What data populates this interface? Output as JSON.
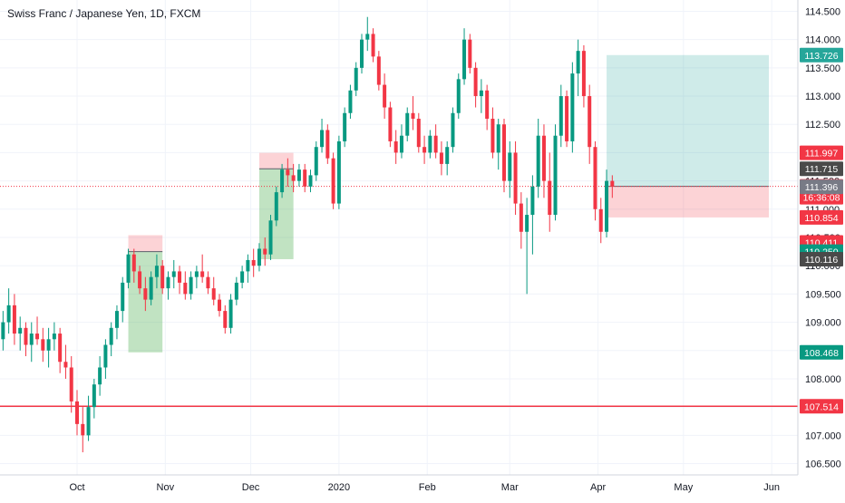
{
  "chart_data": {
    "type": "candlestick",
    "title": "Swiss Franc / Japanese Yen, 1D, FXCM",
    "grid": true,
    "x_axis": {
      "labels": [
        {
          "label": "Oct",
          "date": "2019-10-01"
        },
        {
          "label": "Nov",
          "date": "2019-11-01"
        },
        {
          "label": "Dec",
          "date": "2019-12-01"
        },
        {
          "label": "2020",
          "date": "2020-01-01"
        },
        {
          "label": "Feb",
          "date": "2020-02-01"
        },
        {
          "label": "Mar",
          "date": "2020-03-01"
        },
        {
          "label": "Apr",
          "date": "2020-04-01"
        },
        {
          "label": "May",
          "date": "2020-05-01"
        },
        {
          "label": "Jun",
          "date": "2020-06-01"
        }
      ]
    },
    "y_axis": {
      "ylim": [
        106.3,
        114.7
      ],
      "ticks": [
        "106.500",
        "107.000",
        "107.500",
        "108.000",
        "108.500",
        "109.000",
        "109.500",
        "110.000",
        "110.500",
        "111.000",
        "111.500",
        "112.000",
        "112.500",
        "113.000",
        "113.500",
        "114.000",
        "114.500"
      ]
    },
    "price_labels": [
      {
        "value": 113.726,
        "text": "113.726",
        "color": "#26a69a"
      },
      {
        "value": 111.997,
        "text": "111.997",
        "color": "#f23645"
      },
      {
        "value": 111.715,
        "text": "111.715",
        "color": "#4a4a4a"
      },
      {
        "value": 111.403,
        "text": "111.403",
        "color": "#f23645"
      },
      {
        "value": 111.212,
        "text": "16:36:08",
        "color": "#f23645"
      },
      {
        "value": 111.396,
        "text": "111.396",
        "color": "#787b86"
      },
      {
        "value": 110.854,
        "text": "110.854",
        "color": "#f23645"
      },
      {
        "value": 110.411,
        "text": "110.411",
        "color": "#f23645"
      },
      {
        "value": 110.25,
        "text": "110.250",
        "color": "#089981"
      },
      {
        "value": 110.116,
        "text": "110.116",
        "color": "#4a4a4a"
      },
      {
        "value": 108.468,
        "text": "108.468",
        "color": "#089981"
      },
      {
        "value": 107.514,
        "text": "107.514",
        "color": "#f23645"
      }
    ],
    "horizontal_lines": [
      {
        "value": 107.514,
        "color": "#f23645",
        "style": "solid"
      },
      {
        "value": 111.403,
        "color": "#f23645",
        "style": "dotted"
      }
    ],
    "position_boxes": [
      {
        "kind": "long",
        "x_start": "2019-10-19",
        "x_end": "2019-10-31",
        "entry": 110.25,
        "stop": 110.54,
        "target": 108.468
      },
      {
        "kind": "long",
        "x_start": "2019-12-04",
        "x_end": "2019-12-16",
        "entry": 111.715,
        "stop": 111.997,
        "target": 110.116
      },
      {
        "kind": "long",
        "x_start": "2020-04-04",
        "x_end": "2020-05-31",
        "entry": 111.403,
        "stop": 110.854,
        "target": 113.726
      }
    ],
    "candles": [
      {
        "date": "2019-09-01",
        "o": 108.2,
        "h": 108.6,
        "l": 107.9,
        "c": 108.4
      },
      {
        "date": "2019-09-03",
        "o": 108.4,
        "h": 108.9,
        "l": 108.2,
        "c": 108.7
      },
      {
        "date": "2019-09-05",
        "o": 108.7,
        "h": 109.2,
        "l": 108.5,
        "c": 109.0
      },
      {
        "date": "2019-09-07",
        "o": 109.0,
        "h": 109.6,
        "l": 108.8,
        "c": 109.3
      },
      {
        "date": "2019-09-09",
        "o": 109.3,
        "h": 109.5,
        "l": 108.6,
        "c": 108.8
      },
      {
        "date": "2019-09-11",
        "o": 108.8,
        "h": 109.1,
        "l": 108.5,
        "c": 108.9
      },
      {
        "date": "2019-09-13",
        "o": 108.9,
        "h": 109.0,
        "l": 108.4,
        "c": 108.6
      },
      {
        "date": "2019-09-15",
        "o": 108.6,
        "h": 109.0,
        "l": 108.3,
        "c": 108.8
      },
      {
        "date": "2019-09-17",
        "o": 108.8,
        "h": 109.1,
        "l": 108.6,
        "c": 108.7
      },
      {
        "date": "2019-09-19",
        "o": 108.7,
        "h": 108.9,
        "l": 108.3,
        "c": 108.5
      },
      {
        "date": "2019-09-21",
        "o": 108.5,
        "h": 108.9,
        "l": 108.2,
        "c": 108.7
      },
      {
        "date": "2019-09-23",
        "o": 108.7,
        "h": 109.0,
        "l": 108.5,
        "c": 108.8
      },
      {
        "date": "2019-09-25",
        "o": 108.8,
        "h": 108.9,
        "l": 108.1,
        "c": 108.3
      },
      {
        "date": "2019-09-27",
        "o": 108.3,
        "h": 108.6,
        "l": 108.0,
        "c": 108.2
      },
      {
        "date": "2019-09-29",
        "o": 108.2,
        "h": 108.4,
        "l": 107.4,
        "c": 107.6
      },
      {
        "date": "2019-10-01",
        "o": 107.6,
        "h": 107.8,
        "l": 107.0,
        "c": 107.2
      },
      {
        "date": "2019-10-03",
        "o": 107.2,
        "h": 107.5,
        "l": 106.7,
        "c": 107.0
      },
      {
        "date": "2019-10-05",
        "o": 107.0,
        "h": 107.7,
        "l": 106.9,
        "c": 107.5
      },
      {
        "date": "2019-10-07",
        "o": 107.5,
        "h": 108.0,
        "l": 107.3,
        "c": 107.9
      },
      {
        "date": "2019-10-09",
        "o": 107.9,
        "h": 108.4,
        "l": 107.7,
        "c": 108.2
      },
      {
        "date": "2019-10-11",
        "o": 108.2,
        "h": 108.7,
        "l": 108.0,
        "c": 108.6
      },
      {
        "date": "2019-10-13",
        "o": 108.6,
        "h": 109.0,
        "l": 108.4,
        "c": 108.9
      },
      {
        "date": "2019-10-15",
        "o": 108.9,
        "h": 109.3,
        "l": 108.7,
        "c": 109.2
      },
      {
        "date": "2019-10-17",
        "o": 109.2,
        "h": 109.8,
        "l": 109.0,
        "c": 109.7
      },
      {
        "date": "2019-10-19",
        "o": 109.7,
        "h": 110.3,
        "l": 109.6,
        "c": 110.2
      },
      {
        "date": "2019-10-21",
        "o": 110.2,
        "h": 110.3,
        "l": 109.7,
        "c": 109.9
      },
      {
        "date": "2019-10-23",
        "o": 109.9,
        "h": 110.0,
        "l": 109.5,
        "c": 109.6
      },
      {
        "date": "2019-10-25",
        "o": 109.6,
        "h": 109.8,
        "l": 109.2,
        "c": 109.4
      },
      {
        "date": "2019-10-27",
        "o": 109.4,
        "h": 109.9,
        "l": 109.3,
        "c": 109.8
      },
      {
        "date": "2019-10-29",
        "o": 109.8,
        "h": 110.2,
        "l": 109.6,
        "c": 110.0
      },
      {
        "date": "2019-10-31",
        "o": 110.0,
        "h": 110.1,
        "l": 109.5,
        "c": 109.6
      },
      {
        "date": "2019-11-02",
        "o": 109.6,
        "h": 109.9,
        "l": 109.4,
        "c": 109.8
      },
      {
        "date": "2019-11-04",
        "o": 109.8,
        "h": 110.1,
        "l": 109.6,
        "c": 109.9
      },
      {
        "date": "2019-11-06",
        "o": 109.9,
        "h": 110.0,
        "l": 109.5,
        "c": 109.7
      },
      {
        "date": "2019-11-08",
        "o": 109.7,
        "h": 109.9,
        "l": 109.4,
        "c": 109.5
      },
      {
        "date": "2019-11-10",
        "o": 109.5,
        "h": 109.9,
        "l": 109.4,
        "c": 109.8
      },
      {
        "date": "2019-11-12",
        "o": 109.8,
        "h": 110.0,
        "l": 109.6,
        "c": 109.9
      },
      {
        "date": "2019-11-14",
        "o": 109.9,
        "h": 110.2,
        "l": 109.7,
        "c": 109.8
      },
      {
        "date": "2019-11-16",
        "o": 109.8,
        "h": 109.9,
        "l": 109.5,
        "c": 109.6
      },
      {
        "date": "2019-11-18",
        "o": 109.6,
        "h": 109.8,
        "l": 109.3,
        "c": 109.4
      },
      {
        "date": "2019-11-20",
        "o": 109.4,
        "h": 109.5,
        "l": 109.1,
        "c": 109.2
      },
      {
        "date": "2019-11-22",
        "o": 109.2,
        "h": 109.3,
        "l": 108.8,
        "c": 108.9
      },
      {
        "date": "2019-11-24",
        "o": 108.9,
        "h": 109.5,
        "l": 108.8,
        "c": 109.4
      },
      {
        "date": "2019-11-26",
        "o": 109.4,
        "h": 109.8,
        "l": 109.3,
        "c": 109.7
      },
      {
        "date": "2019-11-28",
        "o": 109.7,
        "h": 110.0,
        "l": 109.6,
        "c": 109.9
      },
      {
        "date": "2019-11-30",
        "o": 109.9,
        "h": 110.2,
        "l": 109.7,
        "c": 110.1
      },
      {
        "date": "2019-12-02",
        "o": 110.1,
        "h": 110.3,
        "l": 109.8,
        "c": 110.0
      },
      {
        "date": "2019-12-04",
        "o": 110.0,
        "h": 110.4,
        "l": 109.9,
        "c": 110.3
      },
      {
        "date": "2019-12-06",
        "o": 110.3,
        "h": 110.5,
        "l": 110.0,
        "c": 110.2
      },
      {
        "date": "2019-12-08",
        "o": 110.2,
        "h": 110.9,
        "l": 110.1,
        "c": 110.8
      },
      {
        "date": "2019-12-10",
        "o": 110.8,
        "h": 111.4,
        "l": 110.7,
        "c": 111.3
      },
      {
        "date": "2019-12-12",
        "o": 111.3,
        "h": 111.8,
        "l": 111.2,
        "c": 111.7
      },
      {
        "date": "2019-12-14",
        "o": 111.7,
        "h": 111.9,
        "l": 111.4,
        "c": 111.6
      },
      {
        "date": "2019-12-16",
        "o": 111.6,
        "h": 111.8,
        "l": 111.3,
        "c": 111.5
      },
      {
        "date": "2019-12-18",
        "o": 111.5,
        "h": 111.8,
        "l": 111.4,
        "c": 111.7
      },
      {
        "date": "2019-12-20",
        "o": 111.7,
        "h": 111.8,
        "l": 111.3,
        "c": 111.4
      },
      {
        "date": "2019-12-22",
        "o": 111.4,
        "h": 111.7,
        "l": 111.3,
        "c": 111.6
      },
      {
        "date": "2019-12-24",
        "o": 111.6,
        "h": 112.2,
        "l": 111.5,
        "c": 112.1
      },
      {
        "date": "2019-12-26",
        "o": 112.1,
        "h": 112.6,
        "l": 112.0,
        "c": 112.4
      },
      {
        "date": "2019-12-28",
        "o": 112.4,
        "h": 112.5,
        "l": 111.8,
        "c": 111.9
      },
      {
        "date": "2019-12-30",
        "o": 111.9,
        "h": 112.0,
        "l": 111.0,
        "c": 111.1
      },
      {
        "date": "2020-01-01",
        "o": 111.1,
        "h": 112.3,
        "l": 111.0,
        "c": 112.2
      },
      {
        "date": "2020-01-03",
        "o": 112.2,
        "h": 112.8,
        "l": 112.1,
        "c": 112.7
      },
      {
        "date": "2020-01-05",
        "o": 112.7,
        "h": 113.2,
        "l": 112.6,
        "c": 113.1
      },
      {
        "date": "2020-01-07",
        "o": 113.1,
        "h": 113.6,
        "l": 113.0,
        "c": 113.5
      },
      {
        "date": "2020-01-09",
        "o": 113.5,
        "h": 114.1,
        "l": 113.4,
        "c": 114.0
      },
      {
        "date": "2020-01-11",
        "o": 114.0,
        "h": 114.4,
        "l": 113.8,
        "c": 114.1
      },
      {
        "date": "2020-01-13",
        "o": 114.1,
        "h": 114.2,
        "l": 113.6,
        "c": 113.7
      },
      {
        "date": "2020-01-15",
        "o": 113.7,
        "h": 113.8,
        "l": 113.1,
        "c": 113.2
      },
      {
        "date": "2020-01-17",
        "o": 113.2,
        "h": 113.4,
        "l": 112.6,
        "c": 112.8
      },
      {
        "date": "2020-01-19",
        "o": 112.8,
        "h": 112.9,
        "l": 112.1,
        "c": 112.2
      },
      {
        "date": "2020-01-21",
        "o": 112.2,
        "h": 112.4,
        "l": 111.8,
        "c": 112.0
      },
      {
        "date": "2020-01-23",
        "o": 112.0,
        "h": 112.5,
        "l": 111.9,
        "c": 112.3
      },
      {
        "date": "2020-01-25",
        "o": 112.3,
        "h": 112.8,
        "l": 112.2,
        "c": 112.7
      },
      {
        "date": "2020-01-27",
        "o": 112.7,
        "h": 113.0,
        "l": 112.4,
        "c": 112.6
      },
      {
        "date": "2020-01-29",
        "o": 112.6,
        "h": 112.7,
        "l": 112.0,
        "c": 112.1
      },
      {
        "date": "2020-01-31",
        "o": 112.1,
        "h": 112.3,
        "l": 111.8,
        "c": 112.0
      },
      {
        "date": "2020-02-02",
        "o": 112.0,
        "h": 112.4,
        "l": 111.9,
        "c": 112.3
      },
      {
        "date": "2020-02-04",
        "o": 112.3,
        "h": 112.5,
        "l": 111.9,
        "c": 112.0
      },
      {
        "date": "2020-02-06",
        "o": 112.0,
        "h": 112.2,
        "l": 111.6,
        "c": 111.8
      },
      {
        "date": "2020-02-08",
        "o": 111.8,
        "h": 112.2,
        "l": 111.6,
        "c": 112.1
      },
      {
        "date": "2020-02-10",
        "o": 112.1,
        "h": 112.8,
        "l": 112.0,
        "c": 112.7
      },
      {
        "date": "2020-02-12",
        "o": 112.7,
        "h": 113.4,
        "l": 112.6,
        "c": 113.3
      },
      {
        "date": "2020-02-14",
        "o": 113.3,
        "h": 114.2,
        "l": 113.2,
        "c": 114.0
      },
      {
        "date": "2020-02-16",
        "o": 114.0,
        "h": 114.1,
        "l": 113.4,
        "c": 113.5
      },
      {
        "date": "2020-02-18",
        "o": 113.5,
        "h": 113.6,
        "l": 112.8,
        "c": 113.0
      },
      {
        "date": "2020-02-20",
        "o": 113.0,
        "h": 113.3,
        "l": 112.7,
        "c": 113.1
      },
      {
        "date": "2020-02-22",
        "o": 113.1,
        "h": 113.2,
        "l": 112.4,
        "c": 112.6
      },
      {
        "date": "2020-02-24",
        "o": 112.6,
        "h": 112.8,
        "l": 111.9,
        "c": 112.0
      },
      {
        "date": "2020-02-26",
        "o": 112.0,
        "h": 112.6,
        "l": 111.7,
        "c": 112.5
      },
      {
        "date": "2020-02-28",
        "o": 112.5,
        "h": 112.6,
        "l": 111.3,
        "c": 111.5
      },
      {
        "date": "2020-03-01",
        "o": 111.5,
        "h": 112.2,
        "l": 111.2,
        "c": 112.0
      },
      {
        "date": "2020-03-03",
        "o": 112.0,
        "h": 112.2,
        "l": 110.9,
        "c": 111.1
      },
      {
        "date": "2020-03-05",
        "o": 111.1,
        "h": 111.3,
        "l": 110.3,
        "c": 110.6
      },
      {
        "date": "2020-03-07",
        "o": 110.6,
        "h": 111.2,
        "l": 109.5,
        "c": 110.9
      },
      {
        "date": "2020-03-09",
        "o": 110.9,
        "h": 111.6,
        "l": 110.2,
        "c": 111.4
      },
      {
        "date": "2020-03-11",
        "o": 111.4,
        "h": 112.6,
        "l": 111.2,
        "c": 112.3
      },
      {
        "date": "2020-03-13",
        "o": 112.3,
        "h": 112.5,
        "l": 111.2,
        "c": 111.5
      },
      {
        "date": "2020-03-15",
        "o": 111.5,
        "h": 112.0,
        "l": 110.6,
        "c": 110.9
      },
      {
        "date": "2020-03-17",
        "o": 110.9,
        "h": 112.5,
        "l": 110.8,
        "c": 112.3
      },
      {
        "date": "2020-03-19",
        "o": 112.3,
        "h": 113.2,
        "l": 112.1,
        "c": 113.0
      },
      {
        "date": "2020-03-21",
        "o": 113.0,
        "h": 113.1,
        "l": 112.1,
        "c": 112.2
      },
      {
        "date": "2020-03-23",
        "o": 112.2,
        "h": 113.6,
        "l": 112.0,
        "c": 113.4
      },
      {
        "date": "2020-03-25",
        "o": 113.4,
        "h": 114.0,
        "l": 113.0,
        "c": 113.8
      },
      {
        "date": "2020-03-27",
        "o": 113.8,
        "h": 113.9,
        "l": 112.8,
        "c": 113.0
      },
      {
        "date": "2020-03-29",
        "o": 113.0,
        "h": 113.2,
        "l": 111.8,
        "c": 112.1
      },
      {
        "date": "2020-03-31",
        "o": 112.1,
        "h": 112.2,
        "l": 110.8,
        "c": 111.0
      },
      {
        "date": "2020-04-02",
        "o": 111.0,
        "h": 111.2,
        "l": 110.4,
        "c": 110.6
      },
      {
        "date": "2020-04-04",
        "o": 110.6,
        "h": 111.7,
        "l": 110.5,
        "c": 111.5
      },
      {
        "date": "2020-04-06",
        "o": 111.5,
        "h": 111.6,
        "l": 111.2,
        "c": 111.4
      }
    ]
  }
}
